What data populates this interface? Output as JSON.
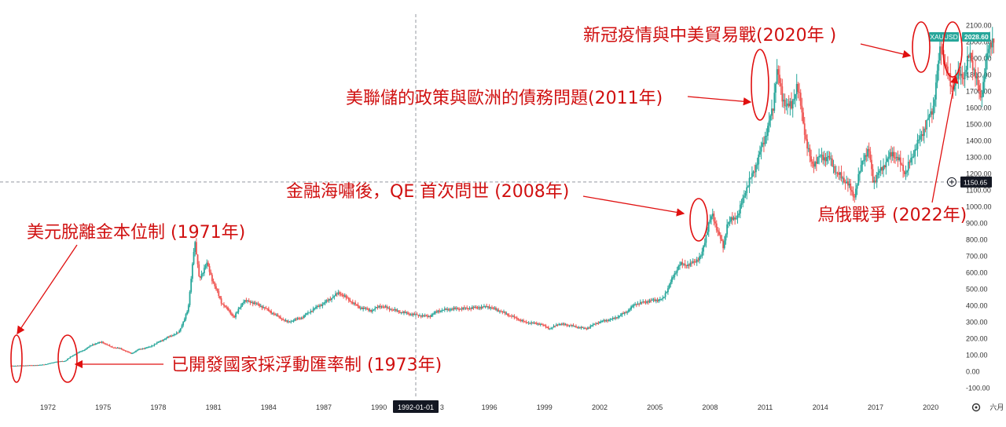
{
  "chart_data": {
    "type": "candlestick",
    "symbol": "XAUUSD",
    "last_price_label": "2028.60",
    "crosshair_price_label": "1150.65",
    "crosshair_date_label": "1992-01-01",
    "colors": {
      "up": "#26a69a",
      "down": "#ef5350",
      "annotation": "#e01010",
      "price_tag": "#26a69a",
      "crosshair_tag": "#131722"
    },
    "ylim": [
      -100,
      2100
    ],
    "y_tick_labels": [
      "-100.00",
      "0.00",
      "100.00",
      "200.00",
      "300.00",
      "400.00",
      "500.00",
      "600.00",
      "700.00",
      "800.00",
      "900.00",
      "1000.00",
      "1100.00",
      "1200.00",
      "1300.00",
      "1400.00",
      "1500.00",
      "1600.00",
      "1700.00",
      "1800.00",
      "1900.00",
      "2000.00",
      "2100.00"
    ],
    "x_tick_labels": [
      "1972",
      "1975",
      "1978",
      "1981",
      "1984",
      "1987",
      "1990",
      "3",
      "1996",
      "1999",
      "2002",
      "2005",
      "2008",
      "2011",
      "2014",
      "2017",
      "2020",
      "六月"
    ],
    "price_path": [
      [
        1970.0,
        35
      ],
      [
        1971.0,
        38
      ],
      [
        1971.6,
        40
      ],
      [
        1972.0,
        46
      ],
      [
        1972.5,
        60
      ],
      [
        1973.0,
        65
      ],
      [
        1973.3,
        90
      ],
      [
        1973.6,
        110
      ],
      [
        1974.0,
        130
      ],
      [
        1974.5,
        165
      ],
      [
        1975.0,
        180
      ],
      [
        1975.5,
        150
      ],
      [
        1976.0,
        140
      ],
      [
        1976.6,
        110
      ],
      [
        1977.0,
        135
      ],
      [
        1977.6,
        150
      ],
      [
        1978.0,
        175
      ],
      [
        1978.8,
        220
      ],
      [
        1979.2,
        240
      ],
      [
        1979.7,
        380
      ],
      [
        1980.05,
        800
      ],
      [
        1980.3,
        560
      ],
      [
        1980.7,
        660
      ],
      [
        1981.0,
        560
      ],
      [
        1981.5,
        420
      ],
      [
        1982.2,
        330
      ],
      [
        1982.7,
        430
      ],
      [
        1983.2,
        420
      ],
      [
        1983.8,
        390
      ],
      [
        1984.5,
        340
      ],
      [
        1985.1,
        300
      ],
      [
        1985.9,
        330
      ],
      [
        1986.5,
        380
      ],
      [
        1987.0,
        410
      ],
      [
        1987.9,
        480
      ],
      [
        1988.5,
        430
      ],
      [
        1989.0,
        390
      ],
      [
        1989.7,
        370
      ],
      [
        1990.1,
        400
      ],
      [
        1990.7,
        380
      ],
      [
        1991.3,
        360
      ],
      [
        1992.0,
        345
      ],
      [
        1992.8,
        335
      ],
      [
        1993.3,
        370
      ],
      [
        1994.0,
        380
      ],
      [
        1995.0,
        385
      ],
      [
        1996.0,
        395
      ],
      [
        1996.6,
        370
      ],
      [
        1997.4,
        330
      ],
      [
        1998.0,
        300
      ],
      [
        1998.8,
        290
      ],
      [
        1999.4,
        260
      ],
      [
        1999.8,
        290
      ],
      [
        2000.5,
        280
      ],
      [
        2001.3,
        260
      ],
      [
        2002.0,
        300
      ],
      [
        2002.8,
        320
      ],
      [
        2003.5,
        360
      ],
      [
        2004.0,
        410
      ],
      [
        2004.8,
        430
      ],
      [
        2005.5,
        440
      ],
      [
        2006.0,
        560
      ],
      [
        2006.4,
        650
      ],
      [
        2007.0,
        650
      ],
      [
        2007.6,
        700
      ],
      [
        2008.0,
        900
      ],
      [
        2008.2,
        950
      ],
      [
        2008.8,
        750
      ],
      [
        2009.0,
        900
      ],
      [
        2009.6,
        950
      ],
      [
        2010.0,
        1100
      ],
      [
        2010.5,
        1230
      ],
      [
        2011.0,
        1400
      ],
      [
        2011.5,
        1600
      ],
      [
        2011.7,
        1850
      ],
      [
        2012.0,
        1650
      ],
      [
        2012.5,
        1600
      ],
      [
        2012.8,
        1750
      ],
      [
        2013.3,
        1400
      ],
      [
        2013.6,
        1250
      ],
      [
        2014.0,
        1300
      ],
      [
        2014.5,
        1300
      ],
      [
        2015.0,
        1200
      ],
      [
        2015.5,
        1150
      ],
      [
        2015.9,
        1060
      ],
      [
        2016.4,
        1300
      ],
      [
        2016.7,
        1340
      ],
      [
        2016.95,
        1150
      ],
      [
        2017.5,
        1250
      ],
      [
        2018.0,
        1330
      ],
      [
        2018.5,
        1250
      ],
      [
        2018.7,
        1200
      ],
      [
        2019.0,
        1290
      ],
      [
        2019.5,
        1420
      ],
      [
        2019.9,
        1520
      ],
      [
        2020.2,
        1600
      ],
      [
        2020.6,
        1970
      ],
      [
        2020.9,
        1850
      ],
      [
        2021.2,
        1720
      ],
      [
        2021.6,
        1800
      ],
      [
        2021.9,
        1800
      ],
      [
        2022.2,
        1930
      ],
      [
        2022.5,
        1800
      ],
      [
        2022.8,
        1650
      ],
      [
        2023.1,
        1900
      ],
      [
        2023.3,
        1980
      ],
      [
        2023.45,
        2028.6
      ]
    ],
    "annotations": [
      {
        "text": "美元脫離金本位制 (1971年)",
        "year": 1971.0,
        "price": 40
      },
      {
        "text": "已開發國家採浮動匯率制 (1973年)",
        "year": 1973.2,
        "price": 90
      },
      {
        "text": "金融海嘯後，QE 首次問世 (2008年)",
        "year": 2008.2,
        "price": 890
      },
      {
        "text": "美聯儲的政策與歐洲的債務問題(2011年)",
        "year": 2011.2,
        "price": 1630
      },
      {
        "text": "新冠疫情與中美貿易戰(2020年 )",
        "year": 2020.4,
        "price": 1850
      },
      {
        "text": "烏俄戰爭 (2022年)",
        "year": 2022.7,
        "price": 1800
      }
    ]
  }
}
